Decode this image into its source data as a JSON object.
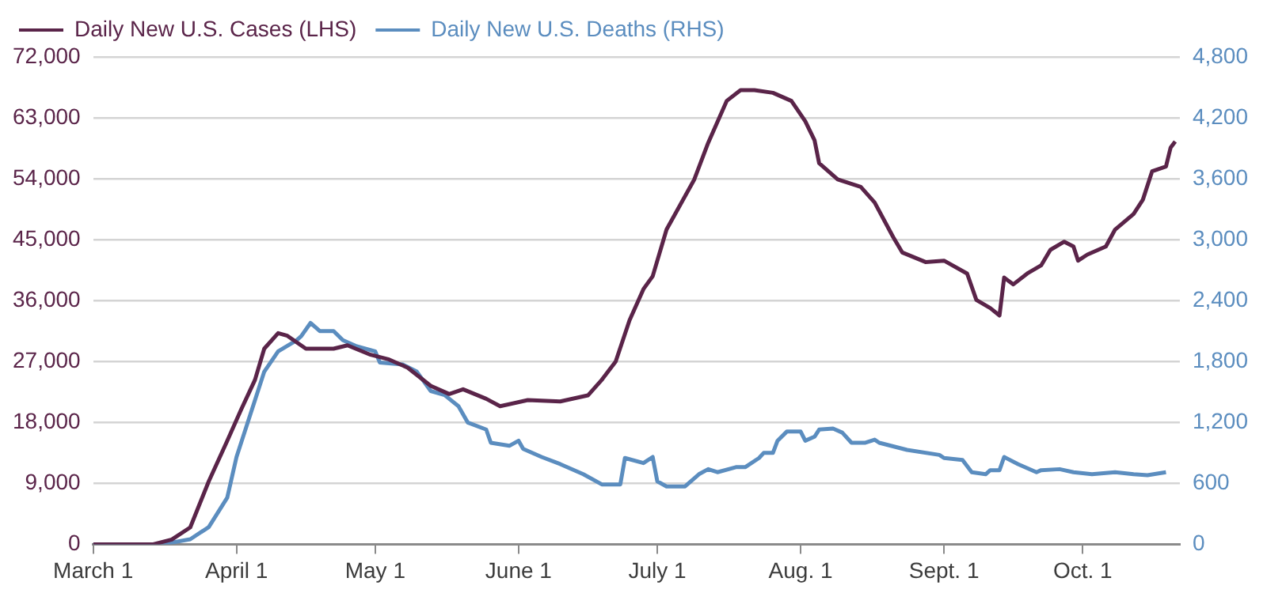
{
  "chart_data": {
    "type": "line",
    "legend": "top left",
    "grid": "y",
    "marker": "none",
    "line_style": "solid",
    "xlim": [
      "--03-01",
      "--10-22"
    ],
    "xticks": [
      {
        "value": "--03-01",
        "label": "March 1"
      },
      {
        "value": "--04-01",
        "label": "April 1"
      },
      {
        "value": "--05-01",
        "label": "May 1"
      },
      {
        "value": "--06-01",
        "label": "June 1"
      },
      {
        "value": "--07-01",
        "label": "July 1"
      },
      {
        "value": "--08-01",
        "label": "Aug. 1"
      },
      {
        "value": "--09-01",
        "label": "Sept. 1"
      },
      {
        "value": "--10-01",
        "label": "Oct. 1"
      }
    ],
    "ylim": [
      0,
      72000
    ],
    "yticks": [
      0,
      {
        "value": 9000,
        "label": "9,000"
      },
      {
        "value": 18000,
        "label": "18,000"
      },
      {
        "value": 27000,
        "label": "27,000"
      },
      {
        "value": 36000,
        "label": "36,000"
      },
      {
        "value": 45000,
        "label": "45,000"
      },
      {
        "value": 54000,
        "label": "54,000"
      },
      {
        "value": 63000,
        "label": "63,000"
      },
      {
        "value": 72000,
        "label": "72,000"
      }
    ],
    "y2lim": [
      0,
      4800
    ],
    "y2ticks": [
      0,
      600,
      {
        "value": 1200,
        "label": "1,200"
      },
      {
        "value": 1800,
        "label": "1,800"
      },
      {
        "value": 2400,
        "label": "2,400"
      },
      {
        "value": 3000,
        "label": "3,000"
      },
      {
        "value": 3600,
        "label": "3,600"
      },
      {
        "value": 4200,
        "label": "4,200"
      },
      {
        "value": 4800,
        "label": "4,800"
      }
    ],
    "series": [
      {
        "name": "Daily New U.S. Cases (LHS)",
        "color": "#5a2449",
        "x": [
          "--03-01",
          "--03-14",
          "--03-18",
          "--03-22",
          "--03-26",
          "--03-30",
          "--04-02",
          "--04-05",
          "--04-07",
          "--04-10",
          "--04-12",
          "--04-16",
          "--04-22",
          "--04-25",
          "--04-30",
          "--05-04",
          "--05-08",
          "--05-13",
          "--05-17",
          "--05-20",
          "--05-25",
          "--05-28",
          "--06-03",
          "--06-10",
          "--06-16",
          "--06-19",
          "--06-22",
          "--06-25",
          "--06-28",
          "--06-30",
          "--07-03",
          "--07-09",
          "--07-12",
          "--07-16",
          "--07-19",
          "--07-22",
          "--07-26",
          "--07-30",
          "--08-02",
          "--08-04",
          "--08-05",
          "--08-09",
          "--08-14",
          "--08-17",
          "--08-21",
          "--08-23",
          "--08-28",
          "--09-01",
          "--09-06",
          "--09-08",
          "--09-11",
          "--09-13",
          "--09-14",
          "--09-16",
          "--09-19",
          "--09-22",
          "--09-24",
          "--09-27",
          "--09-29",
          "--09-30",
          "--10-02",
          "--10-06",
          "--10-08",
          "--10-12",
          "--10-14",
          "--10-16",
          "--10-19",
          "--10-20",
          "--10-21"
        ],
        "values": [
          0,
          0,
          700,
          2500,
          9300,
          15300,
          19900,
          24300,
          28900,
          31200,
          30800,
          28900,
          28900,
          29400,
          28000,
          27300,
          26100,
          23400,
          22200,
          22900,
          21500,
          20400,
          21300,
          21100,
          22000,
          24300,
          27000,
          33100,
          37700,
          39600,
          46500,
          53900,
          59300,
          65500,
          67100,
          67100,
          66700,
          65500,
          62500,
          59700,
          56300,
          53900,
          52800,
          50500,
          45400,
          43100,
          41700,
          41900,
          40000,
          36100,
          34900,
          33800,
          39400,
          38400,
          40000,
          41200,
          43500,
          44700,
          44000,
          41900,
          42800,
          44000,
          46500,
          48800,
          50900,
          55100,
          55800,
          58600,
          59500
        ]
      },
      {
        "name": "Daily New U.S. Deaths (RHS)",
        "color": "#5b8dbf",
        "axis": "y2",
        "x": [
          "--03-01",
          "--03-16",
          "--03-22",
          "--03-26",
          "--03-30",
          "--04-01",
          "--04-04",
          "--04-07",
          "--04-10",
          "--04-14",
          "--04-15",
          "--04-17",
          "--04-19",
          "--04-22",
          "--04-24",
          "--04-27",
          "--05-01",
          "--05-02",
          "--05-07",
          "--05-10",
          "--05-13",
          "--05-16",
          "--05-19",
          "--05-21",
          "--05-25",
          "--05-26",
          "--05-30",
          "--06-01",
          "--06-02",
          "--06-06",
          "--06-10",
          "--06-15",
          "--06-19",
          "--06-23",
          "--06-24",
          "--06-28",
          "--06-30",
          "--07-01",
          "--07-03",
          "--07-07",
          "--07-10",
          "--07-12",
          "--07-14",
          "--07-18",
          "--07-20",
          "--07-23",
          "--07-24",
          "--07-26",
          "--07-27",
          "--07-29",
          "--08-01",
          "--08-02",
          "--08-04",
          "--08-05",
          "--08-08",
          "--08-10",
          "--08-12",
          "--08-15",
          "--08-17",
          "--08-18",
          "--08-24",
          "--08-31",
          "--09-01",
          "--09-05",
          "--09-07",
          "--09-10",
          "--09-11",
          "--09-13",
          "--09-14",
          "--09-17",
          "--09-21",
          "--09-22",
          "--09-26",
          "--09-29",
          "--10-03",
          "--10-08",
          "--10-12",
          "--10-15",
          "--10-19"
        ],
        "values": [
          0,
          0,
          50,
          170,
          460,
          860,
          1280,
          1700,
          1900,
          2010,
          2050,
          2180,
          2100,
          2100,
          2010,
          1950,
          1900,
          1790,
          1770,
          1700,
          1510,
          1470,
          1360,
          1200,
          1130,
          1000,
          970,
          1020,
          940,
          860,
          790,
          690,
          590,
          590,
          850,
          800,
          860,
          620,
          570,
          570,
          690,
          740,
          710,
          760,
          760,
          850,
          900,
          900,
          1020,
          1110,
          1110,
          1020,
          1060,
          1130,
          1140,
          1100,
          1000,
          1000,
          1030,
          1000,
          930,
          880,
          850,
          830,
          710,
          690,
          730,
          730,
          860,
          790,
          710,
          730,
          740,
          710,
          690,
          710,
          690,
          680,
          710
        ]
      }
    ]
  }
}
